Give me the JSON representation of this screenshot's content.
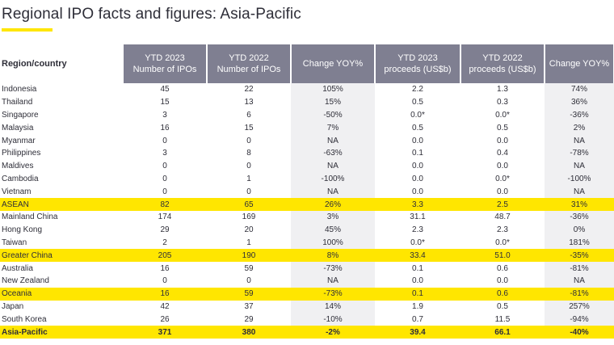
{
  "title": "Regional IPO facts and figures: Asia-Pacific",
  "columns": {
    "region": "Region/country",
    "ytd2023_ipos": [
      "YTD 2023",
      "Number of IPOs"
    ],
    "ytd2022_ipos": [
      "YTD 2022",
      "Number of IPOs"
    ],
    "change_ipos": "Change YOY%",
    "ytd2023_proceeds": [
      "YTD 2023",
      "proceeds (US$b)"
    ],
    "ytd2022_proceeds": [
      "YTD 2022",
      "proceeds (US$b)"
    ],
    "change_proceeds": "Change YOY%"
  },
  "rows": [
    {
      "region": "Indonesia",
      "ipo23": "45",
      "ipo22": "22",
      "chg_ipo": "105%",
      "pr23": "2.2",
      "pr22": "1.3",
      "chg_pr": "74%",
      "highlight": false
    },
    {
      "region": "Thailand",
      "ipo23": "15",
      "ipo22": "13",
      "chg_ipo": "15%",
      "pr23": "0.5",
      "pr22": "0.3",
      "chg_pr": "36%",
      "highlight": false
    },
    {
      "region": "Singapore",
      "ipo23": "3",
      "ipo22": "6",
      "chg_ipo": "-50%",
      "pr23": "0.0*",
      "pr22": "0.0*",
      "chg_pr": "-36%",
      "highlight": false
    },
    {
      "region": "Malaysia",
      "ipo23": "16",
      "ipo22": "15",
      "chg_ipo": "7%",
      "pr23": "0.5",
      "pr22": "0.5",
      "chg_pr": "2%",
      "highlight": false
    },
    {
      "region": "Myanmar",
      "ipo23": "0",
      "ipo22": "0",
      "chg_ipo": "NA",
      "pr23": "0.0",
      "pr22": "0.0",
      "chg_pr": "NA",
      "highlight": false
    },
    {
      "region": "Philippines",
      "ipo23": "3",
      "ipo22": "8",
      "chg_ipo": "-63%",
      "pr23": "0.1",
      "pr22": "0.4",
      "chg_pr": "-78%",
      "highlight": false
    },
    {
      "region": "Maldives",
      "ipo23": "0",
      "ipo22": "0",
      "chg_ipo": "NA",
      "pr23": "0.0",
      "pr22": "0.0",
      "chg_pr": "NA",
      "highlight": false
    },
    {
      "region": "Cambodia",
      "ipo23": "0",
      "ipo22": "1",
      "chg_ipo": "-100%",
      "pr23": "0.0",
      "pr22": "0.0*",
      "chg_pr": "-100%",
      "highlight": false
    },
    {
      "region": "Vietnam",
      "ipo23": "0",
      "ipo22": "0",
      "chg_ipo": "NA",
      "pr23": "0.0",
      "pr22": "0.0",
      "chg_pr": "NA",
      "highlight": false
    },
    {
      "region": "ASEAN",
      "ipo23": "82",
      "ipo22": "65",
      "chg_ipo": "26%",
      "pr23": "3.3",
      "pr22": "2.5",
      "chg_pr": "31%",
      "highlight": true,
      "bold": false
    },
    {
      "region": "Mainland China",
      "ipo23": "174",
      "ipo22": "169",
      "chg_ipo": "3%",
      "pr23": "31.1",
      "pr22": "48.7",
      "chg_pr": "-36%",
      "highlight": false
    },
    {
      "region": "Hong Kong",
      "ipo23": "29",
      "ipo22": "20",
      "chg_ipo": "45%",
      "pr23": "2.3",
      "pr22": "2.3",
      "chg_pr": "0%",
      "highlight": false
    },
    {
      "region": "Taiwan",
      "ipo23": "2",
      "ipo22": "1",
      "chg_ipo": "100%",
      "pr23": "0.0*",
      "pr22": "0.0*",
      "chg_pr": "181%",
      "highlight": false
    },
    {
      "region": "Greater China",
      "ipo23": "205",
      "ipo22": "190",
      "chg_ipo": "8%",
      "pr23": "33.4",
      "pr22": "51.0",
      "chg_pr": "-35%",
      "highlight": true,
      "bold": false
    },
    {
      "region": "Australia",
      "ipo23": "16",
      "ipo22": "59",
      "chg_ipo": "-73%",
      "pr23": "0.1",
      "pr22": "0.6",
      "chg_pr": "-81%",
      "highlight": false
    },
    {
      "region": "New Zealand",
      "ipo23": "0",
      "ipo22": "0",
      "chg_ipo": "NA",
      "pr23": "0.0",
      "pr22": "0.0",
      "chg_pr": "NA",
      "highlight": false
    },
    {
      "region": "Oceania",
      "ipo23": "16",
      "ipo22": "59",
      "chg_ipo": "-73%",
      "pr23": "0.1",
      "pr22": "0.6",
      "chg_pr": "-81%",
      "highlight": true,
      "bold": false
    },
    {
      "region": "Japan",
      "ipo23": "42",
      "ipo22": "37",
      "chg_ipo": "14%",
      "pr23": "1.9",
      "pr22": "0.5",
      "chg_pr": "257%",
      "highlight": false
    },
    {
      "region": "South Korea",
      "ipo23": "26",
      "ipo22": "29",
      "chg_ipo": "-10%",
      "pr23": "0.7",
      "pr22": "11.5",
      "chg_pr": "-94%",
      "highlight": false
    },
    {
      "region": "Asia-Pacific",
      "ipo23": "371",
      "ipo22": "380",
      "chg_ipo": "-2%",
      "pr23": "39.4",
      "pr22": "66.1",
      "chg_pr": "-40%",
      "highlight": true,
      "bold": true
    }
  ],
  "colors": {
    "accent_yellow": "#ffe600",
    "header_gray": "#7f7f91",
    "change_column_bg": "#f0f0f2",
    "text": "#2e2e38"
  }
}
